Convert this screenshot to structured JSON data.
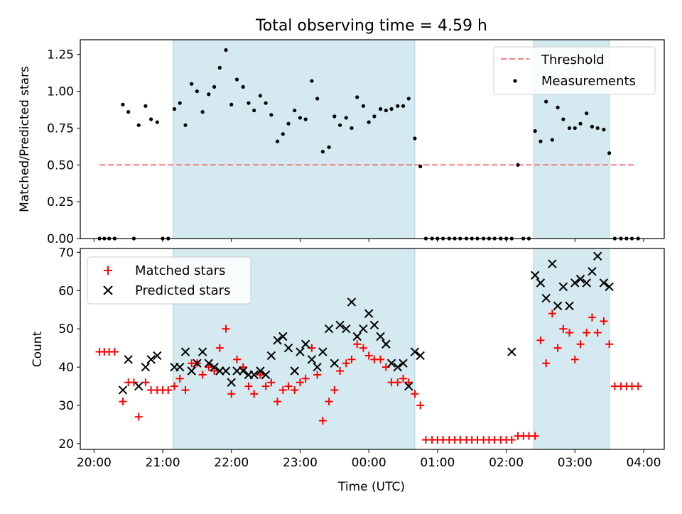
{
  "chart_data": {
    "title": "Total observing time = 4.59 h",
    "xlabel": "Time (UTC)",
    "x_unit": "hours UTC (values >= 24 are past midnight)",
    "xlim": [
      19.8,
      28.3
    ],
    "x_ticks": [
      20,
      21,
      22,
      23,
      24,
      25,
      26,
      27,
      28
    ],
    "x_tick_labels": [
      "20:00",
      "21:00",
      "22:00",
      "23:00",
      "00:00",
      "01:00",
      "02:00",
      "03:00",
      "04:00"
    ],
    "shaded_intervals": [
      [
        21.15,
        24.67
      ],
      [
        26.4,
        27.5
      ]
    ],
    "shade_color": "#d4eaf0",
    "panels": [
      {
        "type": "scatter",
        "ylabel": "Matched/Predicted stars",
        "ylim": [
          0,
          1.35
        ],
        "y_ticks": [
          0.0,
          0.25,
          0.5,
          0.75,
          1.0,
          1.25
        ],
        "y_tick_labels": [
          "0.00",
          "0.25",
          "0.50",
          "0.75",
          "1.00",
          "1.25"
        ],
        "legend_position": "upper right",
        "threshold": {
          "name": "Threshold",
          "y": 0.5,
          "x_range": [
            20.08,
            27.9
          ],
          "color": "#f08080"
        },
        "series": [
          {
            "name": "Measurements",
            "marker": "dot",
            "color": "#000000",
            "x": [
              20.08,
              20.15,
              20.22,
              20.3,
              20.42,
              20.5,
              20.58,
              20.65,
              20.75,
              20.83,
              20.92,
              21.0,
              21.08,
              21.17,
              21.25,
              21.33,
              21.42,
              21.5,
              21.58,
              21.67,
              21.75,
              21.83,
              21.92,
              22.0,
              22.08,
              22.17,
              22.25,
              22.33,
              22.42,
              22.5,
              22.58,
              22.67,
              22.75,
              22.83,
              22.92,
              23.0,
              23.08,
              23.17,
              23.25,
              23.33,
              23.42,
              23.5,
              23.58,
              23.67,
              23.75,
              23.83,
              23.92,
              24.0,
              24.08,
              24.17,
              24.25,
              24.33,
              24.42,
              24.5,
              24.58,
              24.67,
              24.75,
              24.83,
              24.92,
              25.0,
              25.08,
              25.17,
              25.25,
              25.33,
              25.42,
              25.5,
              25.58,
              25.67,
              25.75,
              25.83,
              25.92,
              26.0,
              26.08,
              26.17,
              26.25,
              26.33,
              26.42,
              26.5,
              26.58,
              26.67,
              26.75,
              26.83,
              26.92,
              27.0,
              27.08,
              27.17,
              27.25,
              27.33,
              27.42,
              27.5,
              27.58,
              27.67,
              27.75,
              27.83,
              27.92
            ],
            "y": [
              0,
              0,
              0,
              0,
              0.91,
              0.86,
              0,
              0.77,
              0.9,
              0.81,
              0.79,
              0,
              0,
              0.88,
              0.92,
              0.77,
              1.05,
              1.0,
              0.86,
              0.98,
              1.03,
              1.16,
              1.28,
              0.91,
              1.08,
              1.03,
              0.92,
              0.87,
              0.97,
              0.92,
              0.84,
              0.66,
              0.71,
              0.78,
              0.87,
              0.82,
              0.81,
              1.07,
              0.95,
              0.59,
              0.62,
              0.83,
              0.77,
              0.82,
              0.75,
              0.96,
              0.9,
              0.79,
              0.83,
              0.88,
              0.87,
              0.88,
              0.9,
              0.9,
              0.95,
              0.68,
              0.49,
              0,
              0,
              0,
              0,
              0,
              0,
              0,
              0,
              0,
              0,
              0,
              0,
              0,
              0,
              0,
              0,
              0.5,
              0,
              0,
              0.73,
              0.66,
              0.93,
              0.67,
              0.89,
              0.81,
              0.75,
              0.75,
              0.78,
              0.85,
              0.76,
              0.75,
              0.74,
              0.58,
              0,
              0,
              0,
              0,
              0
            ]
          }
        ]
      },
      {
        "type": "scatter",
        "ylabel": "Count",
        "ylim": [
          18.5,
          71
        ],
        "y_ticks": [
          20,
          30,
          40,
          50,
          60,
          70
        ],
        "y_tick_labels": [
          "20",
          "30",
          "40",
          "50",
          "60",
          "70"
        ],
        "legend_position": "upper left",
        "series": [
          {
            "name": "Matched stars",
            "marker": "plus",
            "color": "#ff0000",
            "x": [
              20.08,
              20.15,
              20.22,
              20.3,
              20.42,
              20.5,
              20.58,
              20.65,
              20.75,
              20.83,
              20.92,
              21.0,
              21.08,
              21.17,
              21.25,
              21.33,
              21.42,
              21.5,
              21.58,
              21.67,
              21.75,
              21.83,
              21.92,
              22.0,
              22.08,
              22.17,
              22.25,
              22.33,
              22.42,
              22.5,
              22.58,
              22.67,
              22.75,
              22.83,
              22.92,
              23.0,
              23.08,
              23.17,
              23.25,
              23.33,
              23.42,
              23.5,
              23.58,
              23.67,
              23.75,
              23.83,
              23.92,
              24.0,
              24.08,
              24.17,
              24.25,
              24.33,
              24.42,
              24.5,
              24.58,
              24.67,
              24.75,
              24.83,
              24.92,
              25.0,
              25.08,
              25.17,
              25.25,
              25.33,
              25.42,
              25.5,
              25.58,
              25.67,
              25.75,
              25.83,
              25.92,
              26.0,
              26.08,
              26.17,
              26.25,
              26.33,
              26.42,
              26.5,
              26.58,
              26.67,
              26.75,
              26.83,
              26.92,
              27.0,
              27.08,
              27.17,
              27.25,
              27.33,
              27.42,
              27.5,
              27.58,
              27.67,
              27.75,
              27.83,
              27.92
            ],
            "y": [
              44,
              44,
              44,
              44,
              31,
              36,
              36,
              27,
              36,
              34,
              34,
              34,
              34,
              35,
              37,
              34,
              41,
              41,
              38,
              40,
              39,
              45,
              50,
              33,
              42,
              40,
              35,
              33,
              38,
              35,
              36,
              31,
              34,
              35,
              34,
              36,
              37,
              45,
              38,
              26,
              31,
              34,
              39,
              41,
              42,
              46,
              45,
              43,
              42,
              42,
              40,
              36,
              36,
              37,
              36,
              33,
              30,
              21,
              21,
              21,
              21,
              21,
              21,
              21,
              21,
              21,
              21,
              21,
              21,
              21,
              21,
              21,
              21,
              22,
              22,
              22,
              22,
              47,
              41,
              54,
              45,
              50,
              49,
              42,
              46,
              49,
              53,
              49,
              52,
              46,
              35,
              35,
              35,
              35,
              35
            ]
          },
          {
            "name": "Predicted stars",
            "marker": "x",
            "color": "#000000",
            "x": [
              20.42,
              20.5,
              20.65,
              20.75,
              20.83,
              20.92,
              21.17,
              21.25,
              21.33,
              21.42,
              21.5,
              21.58,
              21.67,
              21.75,
              21.83,
              21.92,
              22.0,
              22.08,
              22.17,
              22.25,
              22.33,
              22.42,
              22.5,
              22.58,
              22.67,
              22.75,
              22.83,
              22.92,
              23.0,
              23.08,
              23.17,
              23.25,
              23.33,
              23.42,
              23.5,
              23.58,
              23.67,
              23.75,
              23.83,
              23.92,
              24.0,
              24.08,
              24.17,
              24.25,
              24.33,
              24.42,
              24.5,
              24.58,
              24.67,
              24.75,
              26.08,
              26.42,
              26.5,
              26.58,
              26.67,
              26.75,
              26.83,
              26.92,
              27.0,
              27.08,
              27.17,
              27.25,
              27.33,
              27.42,
              27.5
            ],
            "y": [
              34,
              42,
              35,
              40,
              42,
              43,
              40,
              40,
              44,
              39,
              41,
              44,
              41,
              40,
              39,
              39,
              36,
              39,
              39,
              38,
              38,
              39,
              38,
              43,
              47,
              48,
              45,
              39,
              44,
              46,
              42,
              40,
              44,
              50,
              41,
              51,
              50,
              57,
              48,
              50,
              54,
              51,
              48,
              46,
              41,
              40,
              41,
              35,
              44,
              43,
              44,
              64,
              62,
              58,
              67,
              56,
              61,
              56,
              62,
              63,
              62,
              65,
              69,
              62,
              61
            ]
          }
        ]
      }
    ]
  }
}
